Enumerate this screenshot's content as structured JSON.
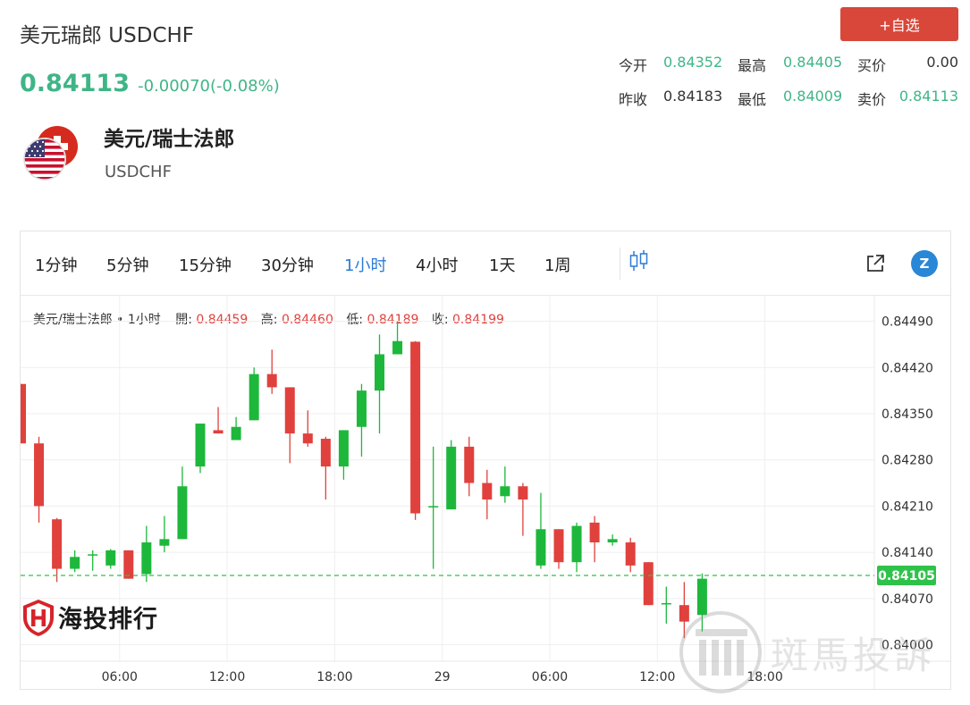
{
  "header": {
    "title": "美元瑞郎 USDCHF",
    "price": "0.84113",
    "change": "-0.00070(-0.08%)",
    "add_button": "+自选"
  },
  "stats": [
    [
      {
        "label": "今开",
        "value": "0.84352"
      },
      {
        "label": "最高",
        "value": "0.84405"
      },
      {
        "label": "买价",
        "value": "0.00"
      }
    ],
    [
      {
        "label": "昨收",
        "value": "0.84183"
      },
      {
        "label": "最低",
        "value": "0.84009"
      },
      {
        "label": "卖价",
        "value": "0.84113"
      }
    ]
  ],
  "pair": {
    "name": "美元/瑞士法郎",
    "code": "USDCHF"
  },
  "toolbar": {
    "intervals": [
      "1分钟",
      "5分钟",
      "15分钟",
      "30分钟",
      "1小时",
      "4小时",
      "1天",
      "1周"
    ],
    "active": "1小时",
    "zoom_glyph": "Z"
  },
  "legend": {
    "symbol": "美元/瑞士法郎 • 1小时",
    "open_label": "開:",
    "open": "0.84459",
    "high_label": "高:",
    "high": "0.84460",
    "low_label": "低:",
    "low": "0.84189",
    "close_label": "收:",
    "close": "0.84199"
  },
  "brand": "海投排行",
  "watermark": "斑馬投訴",
  "chart_data": {
    "type": "candlestick",
    "ylim": [
      0.83975,
      0.8453
    ],
    "y_ticks": [
      "0.84490",
      "0.84420",
      "0.84350",
      "0.84280",
      "0.84210",
      "0.84140",
      "0.84070",
      "0.84000"
    ],
    "x_ticks": [
      {
        "label": "06:00",
        "i": 5.5
      },
      {
        "label": "12:00",
        "i": 11.5
      },
      {
        "label": "18:00",
        "i": 17.5
      },
      {
        "label": "29",
        "i": 23.5
      },
      {
        "label": "06:00",
        "i": 29.5
      },
      {
        "label": "12:00",
        "i": 35.5
      },
      {
        "label": "18:00",
        "i": 41.5
      }
    ],
    "current_price": "0.84105",
    "colors": {
      "up": "#1db83b",
      "down": "#e0413d",
      "current": "#2fc24a"
    },
    "candles": [
      {
        "o": 0.84395,
        "h": 0.84395,
        "l": 0.84305,
        "c": 0.84305
      },
      {
        "o": 0.84305,
        "h": 0.84315,
        "l": 0.84185,
        "c": 0.8421
      },
      {
        "o": 0.8419,
        "h": 0.84192,
        "l": 0.84095,
        "c": 0.84115
      },
      {
        "o": 0.84115,
        "h": 0.84143,
        "l": 0.8411,
        "c": 0.84133
      },
      {
        "o": 0.84135,
        "h": 0.84143,
        "l": 0.84112,
        "c": 0.84137
      },
      {
        "o": 0.8412,
        "h": 0.84145,
        "l": 0.84115,
        "c": 0.84143
      },
      {
        "o": 0.84143,
        "h": 0.84143,
        "l": 0.841,
        "c": 0.841
      },
      {
        "o": 0.84107,
        "h": 0.8418,
        "l": 0.84095,
        "c": 0.84155
      },
      {
        "o": 0.8415,
        "h": 0.84195,
        "l": 0.8414,
        "c": 0.8416
      },
      {
        "o": 0.8416,
        "h": 0.8427,
        "l": 0.8416,
        "c": 0.8424
      },
      {
        "o": 0.8427,
        "h": 0.84335,
        "l": 0.8426,
        "c": 0.84335
      },
      {
        "o": 0.84325,
        "h": 0.8436,
        "l": 0.8432,
        "c": 0.8432
      },
      {
        "o": 0.8431,
        "h": 0.84345,
        "l": 0.8431,
        "c": 0.8433
      },
      {
        "o": 0.8434,
        "h": 0.8442,
        "l": 0.8434,
        "c": 0.8441
      },
      {
        "o": 0.8441,
        "h": 0.84447,
        "l": 0.8438,
        "c": 0.8439
      },
      {
        "o": 0.8439,
        "h": 0.8439,
        "l": 0.84275,
        "c": 0.8432
      },
      {
        "o": 0.8432,
        "h": 0.84355,
        "l": 0.843,
        "c": 0.84305
      },
      {
        "o": 0.84312,
        "h": 0.84315,
        "l": 0.8422,
        "c": 0.8427
      },
      {
        "o": 0.8427,
        "h": 0.84325,
        "l": 0.8425,
        "c": 0.84325
      },
      {
        "o": 0.8433,
        "h": 0.84395,
        "l": 0.84285,
        "c": 0.84385
      },
      {
        "o": 0.84385,
        "h": 0.8447,
        "l": 0.8432,
        "c": 0.8444
      },
      {
        "o": 0.8444,
        "h": 0.8449,
        "l": 0.8444,
        "c": 0.8446
      },
      {
        "o": 0.84459,
        "h": 0.8446,
        "l": 0.84189,
        "c": 0.84199
      },
      {
        "o": 0.84208,
        "h": 0.843,
        "l": 0.84115,
        "c": 0.8421
      },
      {
        "o": 0.84205,
        "h": 0.8431,
        "l": 0.84205,
        "c": 0.843
      },
      {
        "o": 0.843,
        "h": 0.84315,
        "l": 0.84225,
        "c": 0.84245
      },
      {
        "o": 0.84245,
        "h": 0.84265,
        "l": 0.8419,
        "c": 0.8422
      },
      {
        "o": 0.84225,
        "h": 0.8427,
        "l": 0.84215,
        "c": 0.8424
      },
      {
        "o": 0.8424,
        "h": 0.84245,
        "l": 0.84165,
        "c": 0.8422
      },
      {
        "o": 0.8412,
        "h": 0.8423,
        "l": 0.84115,
        "c": 0.84175
      },
      {
        "o": 0.84175,
        "h": 0.84175,
        "l": 0.84115,
        "c": 0.84125
      },
      {
        "o": 0.84125,
        "h": 0.84185,
        "l": 0.8411,
        "c": 0.8418
      },
      {
        "o": 0.84185,
        "h": 0.84195,
        "l": 0.84125,
        "c": 0.84155
      },
      {
        "o": 0.84155,
        "h": 0.84167,
        "l": 0.8415,
        "c": 0.8416
      },
      {
        "o": 0.84155,
        "h": 0.84162,
        "l": 0.8411,
        "c": 0.8412
      },
      {
        "o": 0.84125,
        "h": 0.84125,
        "l": 0.8406,
        "c": 0.8406
      },
      {
        "o": 0.84063,
        "h": 0.84088,
        "l": 0.84032,
        "c": 0.84063
      },
      {
        "o": 0.8406,
        "h": 0.84095,
        "l": 0.8401,
        "c": 0.84035
      },
      {
        "o": 0.84045,
        "h": 0.84108,
        "l": 0.8402,
        "c": 0.841
      }
    ]
  }
}
